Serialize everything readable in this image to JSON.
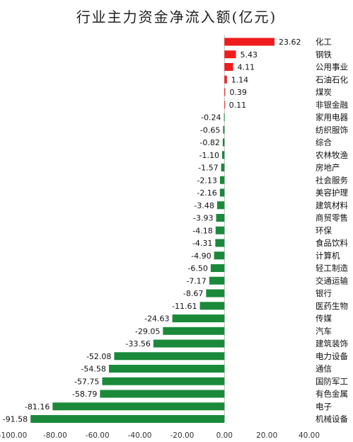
{
  "chart_data": {
    "type": "bar",
    "orientation": "horizontal",
    "title": "行业主力资金净流入额(亿元)",
    "xlabel": "",
    "ylabel": "",
    "xlim": [
      -100,
      40
    ],
    "x_ticks": [
      -100,
      -80,
      -60,
      -40,
      -20,
      0,
      20,
      40
    ],
    "x_tick_labels": [
      "-100.00",
      "-80.00",
      "-60.00",
      "-40.00",
      "-20.00",
      "0.00",
      "20.00",
      "40.00"
    ],
    "grid": false,
    "legend": "none",
    "colors": {
      "positive": "#ee1c1c",
      "negative": "#1a8a3a"
    },
    "categories": [
      "化工",
      "钢铁",
      "公用事业",
      "石油石化",
      "煤炭",
      "非银金融",
      "家用电器",
      "纺织服饰",
      "综合",
      "农林牧渔",
      "房地产",
      "社会服务",
      "美容护理",
      "建筑材料",
      "商贸零售",
      "环保",
      "食品饮料",
      "计算机",
      "轻工制造",
      "交通运输",
      "银行",
      "医药生物",
      "传媒",
      "汽车",
      "建筑装饰",
      "电力设备",
      "通信",
      "国防军工",
      "有色金属",
      "电子",
      "机械设备"
    ],
    "values": [
      23.62,
      5.43,
      4.11,
      1.14,
      0.39,
      0.11,
      -0.24,
      -0.65,
      -0.82,
      -1.1,
      -1.57,
      -2.13,
      -2.16,
      -3.48,
      -3.93,
      -4.18,
      -4.31,
      -4.9,
      -6.5,
      -7.17,
      -8.67,
      -11.61,
      -24.63,
      -29.05,
      -33.56,
      -52.08,
      -54.58,
      -57.75,
      -58.79,
      -81.16,
      -91.58
    ],
    "value_labels": [
      "23.62",
      "5.43",
      "4.11",
      "1.14",
      "0.39",
      "0.11",
      "-0.24",
      "-0.65",
      "-0.82",
      "-1.10",
      "-1.57",
      "-2.13",
      "-2.16",
      "-3.48",
      "-3.93",
      "-4.18",
      "-4.31",
      "-4.90",
      "-6.50",
      "-7.17",
      "-8.67",
      "-11.61",
      "-24.63",
      "-29.05",
      "-33.56",
      "-52.08",
      "-54.58",
      "-57.75",
      "-58.79",
      "-81.16",
      "-91.58"
    ]
  }
}
